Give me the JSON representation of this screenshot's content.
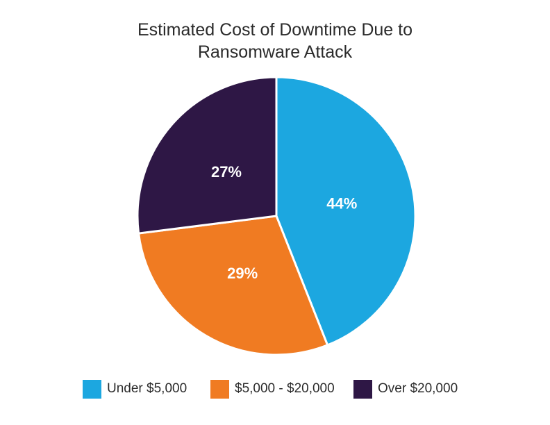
{
  "chart_data": {
    "type": "pie",
    "title_lines": [
      "Estimated Cost of Downtime Due to",
      "Ransomware Attack"
    ],
    "categories": [
      "Under $5,000",
      "$5,000 - $20,000",
      "Over $20,000"
    ],
    "values": [
      44,
      29,
      27
    ],
    "data_labels": [
      "44%",
      "29%",
      "27%"
    ],
    "colors": [
      "#1ca7e0",
      "#f07b22",
      "#2e1745"
    ],
    "label_color": "#ffffff",
    "start_angle_deg": 0,
    "direction": "clockwise",
    "legend_position": "bottom"
  }
}
